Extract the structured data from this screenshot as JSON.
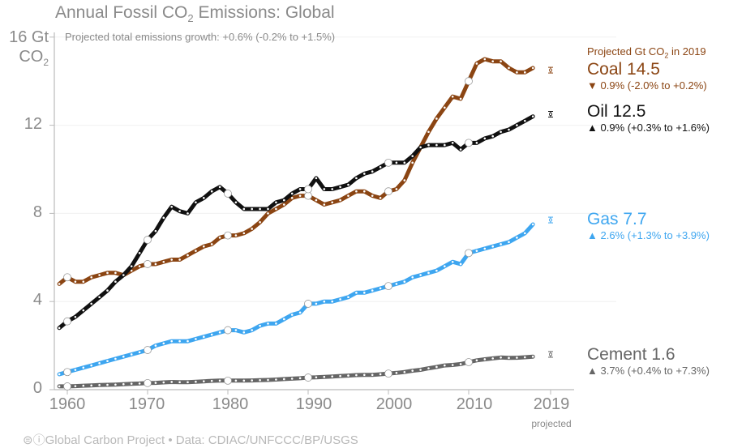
{
  "chart_data": {
    "type": "line",
    "title": "Annual Fossil CO₂ Emissions: Global",
    "subtitle": "Projected total emissions growth: +0.6% (-0.2% to +1.5%)",
    "ylabel": "Gt CO₂",
    "ylim": [
      0,
      16
    ],
    "yticks": [
      0,
      4,
      8,
      12,
      16
    ],
    "ytick_labels": [
      "0",
      "4",
      "8",
      "12",
      "16 Gt"
    ],
    "xlim": [
      1959,
      2021
    ],
    "xticks": [
      1960,
      1970,
      1980,
      1990,
      2000,
      2010,
      2019
    ],
    "xtick_labels": [
      "1960",
      "1970",
      "1980",
      "1990",
      "2000",
      "2010",
      "2019"
    ],
    "xtick_sublabel": "projected",
    "grid": true,
    "legend_header": "Projected Gt CO₂ in 2019",
    "x": [
      1959,
      1960,
      1961,
      1962,
      1963,
      1964,
      1965,
      1966,
      1967,
      1968,
      1969,
      1970,
      1971,
      1972,
      1973,
      1974,
      1975,
      1976,
      1977,
      1978,
      1979,
      1980,
      1981,
      1982,
      1983,
      1984,
      1985,
      1986,
      1987,
      1988,
      1989,
      1990,
      1991,
      1992,
      1993,
      1994,
      1995,
      1996,
      1997,
      1998,
      1999,
      2000,
      2001,
      2002,
      2003,
      2004,
      2005,
      2006,
      2007,
      2008,
      2009,
      2010,
      2011,
      2012,
      2013,
      2014,
      2015,
      2016,
      2017,
      2018
    ],
    "series": [
      {
        "name": "Coal",
        "color": "#8b4513",
        "projected_2019": 14.5,
        "projection_label": "Coal 14.5",
        "change_direction": "down",
        "change_text": "0.9% (-2.0% to +0.2%)",
        "values": [
          4.8,
          5.1,
          4.9,
          4.9,
          5.1,
          5.2,
          5.3,
          5.3,
          5.2,
          5.4,
          5.6,
          5.7,
          5.7,
          5.8,
          5.9,
          5.9,
          6.1,
          6.3,
          6.5,
          6.6,
          6.9,
          7.0,
          7.0,
          7.1,
          7.3,
          7.6,
          8.0,
          8.2,
          8.4,
          8.7,
          8.8,
          8.8,
          8.6,
          8.4,
          8.5,
          8.6,
          8.8,
          9.0,
          9.0,
          8.8,
          8.7,
          9.0,
          9.1,
          9.5,
          10.3,
          11.0,
          11.7,
          12.3,
          12.8,
          13.3,
          13.2,
          14.0,
          14.8,
          15.0,
          14.9,
          14.9,
          14.6,
          14.4,
          14.4,
          14.6
        ]
      },
      {
        "name": "Oil",
        "color": "#111111",
        "projected_2019": 12.5,
        "projection_label": "Oil 12.5",
        "change_direction": "up",
        "change_text": "0.9% (+0.3% to +1.6%)",
        "values": [
          2.8,
          3.1,
          3.3,
          3.6,
          3.9,
          4.2,
          4.5,
          4.9,
          5.2,
          5.6,
          6.2,
          6.8,
          7.2,
          7.8,
          8.3,
          8.1,
          8.0,
          8.5,
          8.7,
          9.0,
          9.2,
          8.9,
          8.5,
          8.2,
          8.2,
          8.2,
          8.2,
          8.5,
          8.6,
          8.9,
          9.1,
          9.1,
          9.6,
          9.1,
          9.1,
          9.2,
          9.3,
          9.6,
          9.8,
          9.9,
          10.1,
          10.3,
          10.3,
          10.3,
          10.6,
          11.0,
          11.1,
          11.1,
          11.1,
          11.2,
          10.9,
          11.2,
          11.2,
          11.4,
          11.5,
          11.7,
          11.8,
          12.0,
          12.2,
          12.4
        ]
      },
      {
        "name": "Gas",
        "color": "#3ea6f0",
        "projected_2019": 7.7,
        "projection_label": "Gas 7.7",
        "change_direction": "up",
        "change_text": "2.6% (+1.3% to +3.9%)",
        "values": [
          0.7,
          0.8,
          0.9,
          1.0,
          1.1,
          1.2,
          1.3,
          1.4,
          1.5,
          1.6,
          1.7,
          1.8,
          2.0,
          2.1,
          2.2,
          2.2,
          2.2,
          2.3,
          2.4,
          2.5,
          2.6,
          2.7,
          2.7,
          2.6,
          2.7,
          2.9,
          3.0,
          3.0,
          3.2,
          3.4,
          3.5,
          3.9,
          3.9,
          4.0,
          4.0,
          4.1,
          4.2,
          4.4,
          4.4,
          4.5,
          4.6,
          4.7,
          4.8,
          4.9,
          5.1,
          5.2,
          5.3,
          5.4,
          5.6,
          5.8,
          5.7,
          6.2,
          6.3,
          6.4,
          6.5,
          6.6,
          6.7,
          6.9,
          7.1,
          7.5
        ]
      },
      {
        "name": "Cement",
        "color": "#666666",
        "projected_2019": 1.6,
        "projection_label": "Cement 1.6",
        "change_direction": "up",
        "change_text": "3.7% (+0.4% to +7.3%)",
        "values": [
          0.15,
          0.15,
          0.16,
          0.18,
          0.19,
          0.21,
          0.22,
          0.23,
          0.25,
          0.27,
          0.28,
          0.3,
          0.31,
          0.33,
          0.35,
          0.34,
          0.34,
          0.36,
          0.38,
          0.4,
          0.41,
          0.41,
          0.41,
          0.41,
          0.42,
          0.43,
          0.44,
          0.46,
          0.48,
          0.5,
          0.52,
          0.55,
          0.56,
          0.58,
          0.6,
          0.62,
          0.64,
          0.66,
          0.67,
          0.67,
          0.7,
          0.73,
          0.76,
          0.8,
          0.86,
          0.9,
          0.97,
          1.03,
          1.1,
          1.12,
          1.16,
          1.25,
          1.33,
          1.38,
          1.42,
          1.46,
          1.44,
          1.45,
          1.47,
          1.5
        ]
      }
    ]
  },
  "footer": "Global Carbon Project  •  Data: CDIAC/UNFCCC/BP/USGS",
  "footer_icons": "cc-by-icon",
  "labels": {
    "title_main": "Annual Fossil CO",
    "title_sub": "2",
    "title_rest": " Emissions: Global",
    "unit_top": "16 Gt",
    "unit_co": "CO",
    "unit_sub": "2",
    "legend_head_main": "Projected Gt CO",
    "legend_head_sub": "2",
    "legend_head_rest": " in 2019"
  }
}
